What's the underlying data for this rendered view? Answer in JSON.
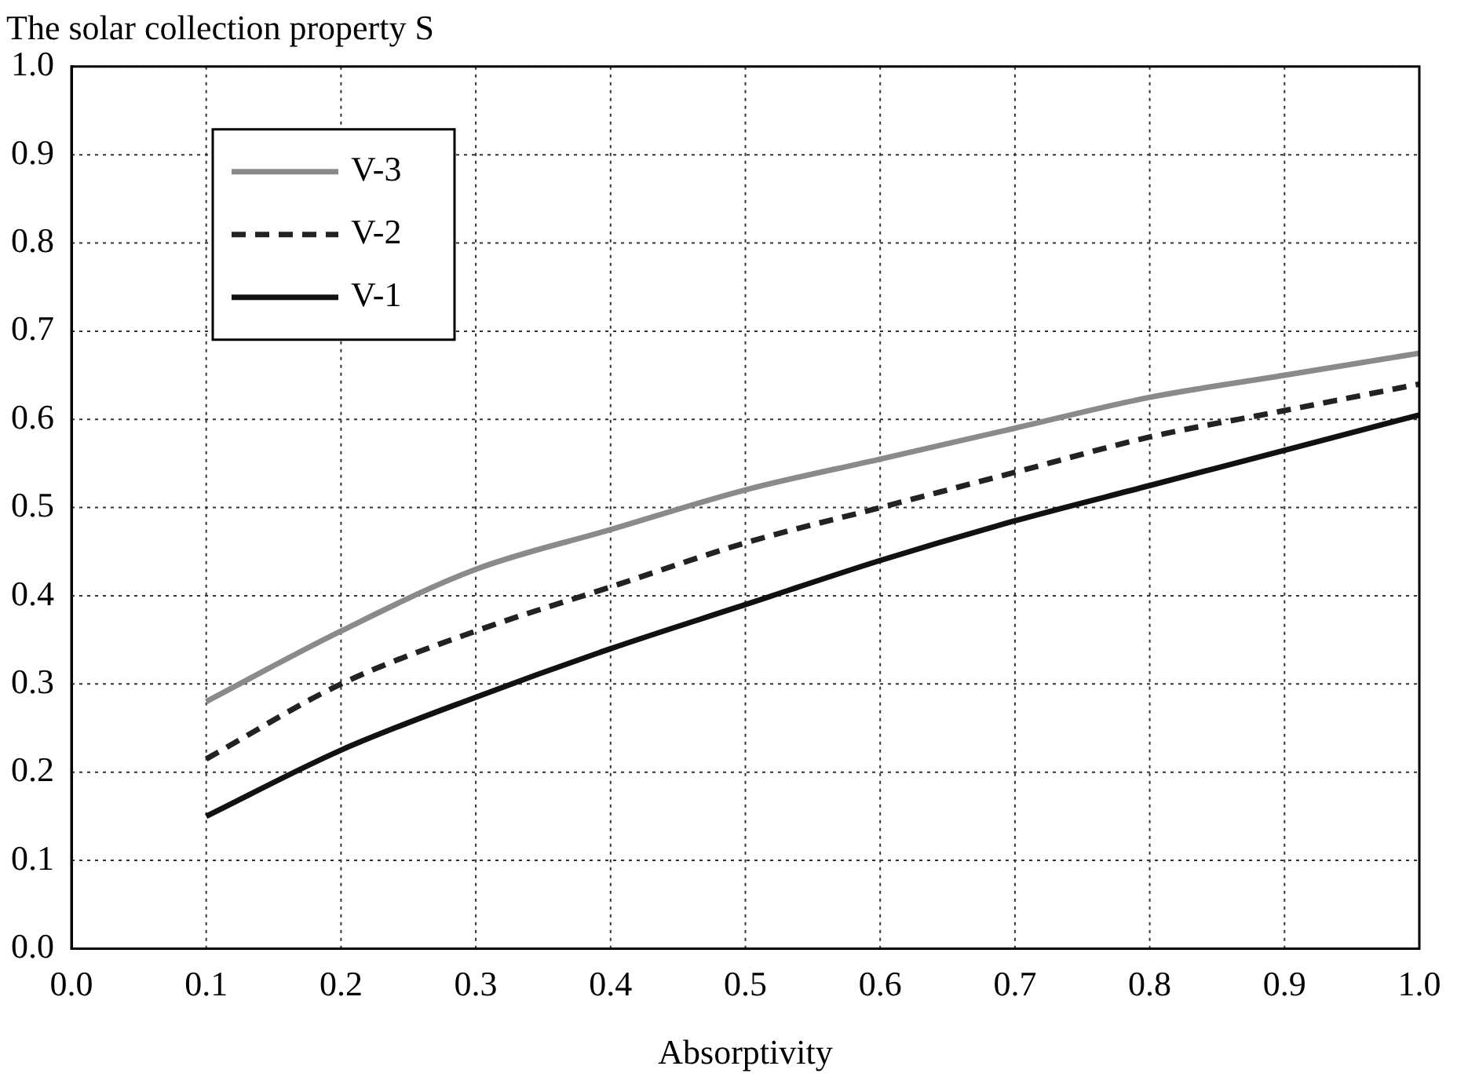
{
  "chart_data": {
    "type": "line",
    "title": "The solar collection property S",
    "xlabel": "Absorptivity",
    "x": [
      0.1,
      0.2,
      0.3,
      0.4,
      0.5,
      0.6,
      0.7,
      0.8,
      0.9,
      1.0
    ],
    "series": [
      {
        "name": "V-3",
        "color": "#8a8a8a",
        "line_style": "solid",
        "values": [
          0.28,
          0.36,
          0.43,
          0.475,
          0.52,
          0.555,
          0.59,
          0.625,
          0.65,
          0.675
        ]
      },
      {
        "name": "V-2",
        "color": "#222222",
        "line_style": "dashed",
        "values": [
          0.215,
          0.3,
          0.36,
          0.41,
          0.46,
          0.5,
          0.54,
          0.58,
          0.61,
          0.64
        ]
      },
      {
        "name": "V-1",
        "color": "#111111",
        "line_style": "solid",
        "values": [
          0.15,
          0.225,
          0.285,
          0.34,
          0.39,
          0.44,
          0.485,
          0.525,
          0.565,
          0.605
        ]
      }
    ],
    "xlim": [
      0,
      1
    ],
    "xticks": [
      {
        "value": 0,
        "label": "0.0"
      },
      0.1,
      0.2,
      0.3,
      0.4,
      0.5,
      0.6,
      0.7,
      0.8,
      0.9,
      {
        "value": 1,
        "label": "1.0"
      }
    ],
    "ylim": [
      0,
      1
    ],
    "yticks": [
      {
        "value": 0,
        "label": "0.0"
      },
      0.1,
      0.2,
      0.3,
      0.4,
      0.5,
      0.6,
      0.7,
      0.8,
      0.9,
      {
        "value": 1,
        "label": "1.0"
      }
    ],
    "grid": true,
    "legend": "top left",
    "marker": "none"
  }
}
